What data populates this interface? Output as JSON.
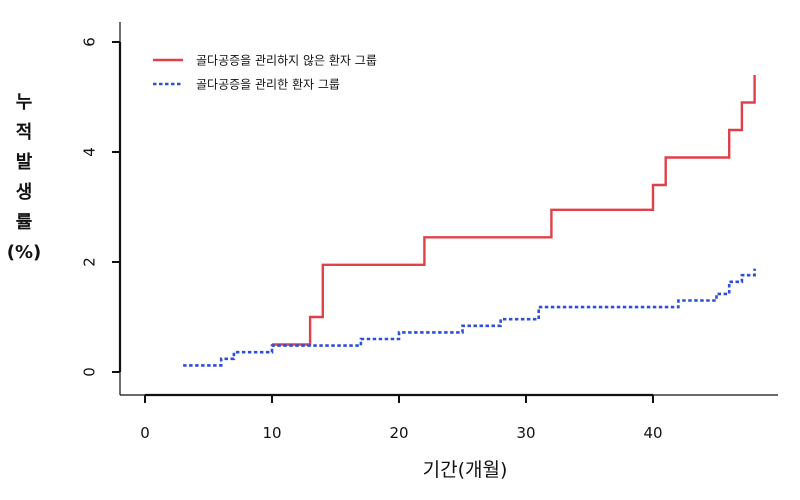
{
  "chart_data": {
    "type": "line",
    "title": "",
    "xlabel": "기간(개월)",
    "ylabel": "누적발생률(%)",
    "ylabel_chars": [
      "누",
      "적",
      "발",
      "생",
      "률",
      "(%)"
    ],
    "xlim": [
      0,
      49
    ],
    "ylim": [
      0,
      6
    ],
    "x_ticks": [
      0,
      10,
      20,
      30,
      40
    ],
    "y_ticks": [
      0,
      2,
      4,
      6
    ],
    "grid": false,
    "legend_position": "top-left",
    "series": [
      {
        "name": "골다공증을 관리하지 않은 환자 그룹",
        "style": "solid",
        "color": "#e0404a",
        "x": [
          10,
          13,
          13,
          14,
          14,
          22,
          22,
          32,
          32,
          40,
          40,
          41,
          41,
          46,
          46,
          47,
          47,
          48,
          48
        ],
        "y": [
          0.5,
          0.5,
          1.0,
          1.0,
          1.95,
          1.95,
          2.45,
          2.45,
          2.95,
          2.95,
          3.4,
          3.4,
          3.9,
          3.9,
          4.4,
          4.4,
          4.9,
          4.9,
          5.4
        ]
      },
      {
        "name": "골다공증을 관리한 환자 그룹",
        "style": "dotted",
        "color": "#2e4fd6",
        "x": [
          3,
          6,
          6,
          7,
          7,
          10,
          10,
          13,
          13,
          17,
          17,
          20,
          20,
          25,
          25,
          28,
          28,
          31,
          31,
          42,
          42,
          45,
          45,
          46,
          46,
          47,
          47,
          48,
          48
        ],
        "y": [
          0.12,
          0.12,
          0.24,
          0.24,
          0.36,
          0.36,
          0.48,
          0.48,
          0.48,
          0.48,
          0.6,
          0.6,
          0.72,
          0.72,
          0.84,
          0.84,
          0.96,
          0.96,
          1.18,
          1.18,
          1.3,
          1.3,
          1.42,
          1.42,
          1.64,
          1.64,
          1.76,
          1.76,
          1.88
        ]
      }
    ]
  }
}
